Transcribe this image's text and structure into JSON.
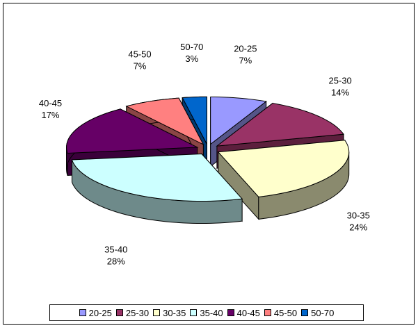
{
  "chart_data": {
    "type": "pie",
    "title": "",
    "categories": [
      "20-25",
      "25-30",
      "30-35",
      "35-40",
      "40-45",
      "45-50",
      "50-70"
    ],
    "values": [
      7,
      14,
      24,
      28,
      17,
      7,
      3
    ],
    "value_labels": [
      "7%",
      "14%",
      "24%",
      "28%",
      "17%",
      "7%",
      "3%"
    ],
    "colors": [
      "#9999ff",
      "#993366",
      "#ffffcc",
      "#ccffff",
      "#660066",
      "#ff8080",
      "#0066cc"
    ],
    "side_colors": [
      "#555588",
      "#5c1f3d",
      "#8a8a6e",
      "#6e8a8a",
      "#3a003a",
      "#8a4545",
      "#003a73"
    ],
    "exploded": true,
    "three_d": true,
    "legend_position": "bottom"
  }
}
